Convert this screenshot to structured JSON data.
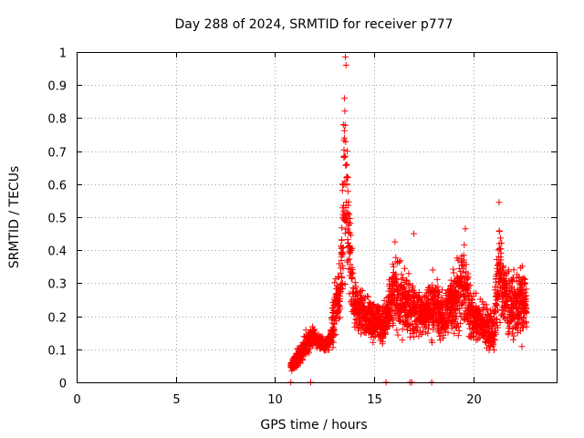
{
  "chart_data": {
    "type": "scatter",
    "title": "Day 288 of 2024, SRMTID for receiver p777",
    "xlabel": "GPS time / hours",
    "ylabel": "SRMTID / TECUs",
    "xlim": [
      0,
      24.2
    ],
    "ylim": [
      0,
      1
    ],
    "x_ticks": [
      0,
      5,
      10,
      15,
      20
    ],
    "x_tick_labels": [
      "0",
      "5",
      "10",
      "15",
      "20"
    ],
    "y_ticks": [
      0,
      0.1,
      0.2,
      0.3,
      0.4,
      0.5,
      0.6,
      0.7,
      0.8,
      0.9,
      1
    ],
    "y_tick_labels": [
      "0",
      "0.1",
      "0.2",
      "0.3",
      "0.4",
      "0.5",
      "0.6",
      "0.7",
      "0.8",
      "0.9",
      "1"
    ],
    "grid": true,
    "marker": "+",
    "color": "#ff0000",
    "series": [
      {
        "name": "SRMTID",
        "envelope": [
          {
            "x": 10.8,
            "y_min": 0.03,
            "y_max": 0.07
          },
          {
            "x": 11.0,
            "y_min": 0.03,
            "y_max": 0.1
          },
          {
            "x": 11.3,
            "y_min": 0.05,
            "y_max": 0.12
          },
          {
            "x": 11.6,
            "y_min": 0.07,
            "y_max": 0.17
          },
          {
            "x": 11.9,
            "y_min": 0.1,
            "y_max": 0.18
          },
          {
            "x": 12.2,
            "y_min": 0.09,
            "y_max": 0.16
          },
          {
            "x": 12.5,
            "y_min": 0.08,
            "y_max": 0.14
          },
          {
            "x": 12.8,
            "y_min": 0.09,
            "y_max": 0.17
          },
          {
            "x": 13.0,
            "y_min": 0.1,
            "y_max": 0.33
          },
          {
            "x": 13.3,
            "y_min": 0.15,
            "y_max": 0.45
          },
          {
            "x": 13.5,
            "y_min": 0.2,
            "y_max": 0.98
          },
          {
            "x": 13.7,
            "y_min": 0.25,
            "y_max": 0.66
          },
          {
            "x": 14.0,
            "y_min": 0.14,
            "y_max": 0.32
          },
          {
            "x": 14.5,
            "y_min": 0.12,
            "y_max": 0.3
          },
          {
            "x": 15.0,
            "y_min": 0.1,
            "y_max": 0.28
          },
          {
            "x": 15.5,
            "y_min": 0.09,
            "y_max": 0.26
          },
          {
            "x": 16.0,
            "y_min": 0.12,
            "y_max": 0.42
          },
          {
            "x": 16.5,
            "y_min": 0.1,
            "y_max": 0.38
          },
          {
            "x": 17.0,
            "y_min": 0.12,
            "y_max": 0.33
          },
          {
            "x": 17.5,
            "y_min": 0.11,
            "y_max": 0.3
          },
          {
            "x": 18.0,
            "y_min": 0.1,
            "y_max": 0.38
          },
          {
            "x": 18.5,
            "y_min": 0.1,
            "y_max": 0.28
          },
          {
            "x": 19.0,
            "y_min": 0.11,
            "y_max": 0.4
          },
          {
            "x": 19.5,
            "y_min": 0.12,
            "y_max": 0.46
          },
          {
            "x": 20.0,
            "y_min": 0.1,
            "y_max": 0.28
          },
          {
            "x": 20.5,
            "y_min": 0.09,
            "y_max": 0.27
          },
          {
            "x": 21.0,
            "y_min": 0.05,
            "y_max": 0.25
          },
          {
            "x": 21.3,
            "y_min": 0.15,
            "y_max": 0.54
          },
          {
            "x": 21.6,
            "y_min": 0.12,
            "y_max": 0.4
          },
          {
            "x": 22.0,
            "y_min": 0.1,
            "y_max": 0.35
          },
          {
            "x": 22.5,
            "y_min": 0.1,
            "y_max": 0.39
          },
          {
            "x": 22.7,
            "y_min": 0.12,
            "y_max": 0.35
          }
        ],
        "peaks": [
          {
            "x": 13.55,
            "y": 0.985
          },
          {
            "x": 13.58,
            "y": 0.96
          },
          {
            "x": 13.5,
            "y": 0.86
          },
          {
            "x": 13.45,
            "y": 0.78
          },
          {
            "x": 13.62,
            "y": 0.66
          },
          {
            "x": 13.68,
            "y": 0.62
          },
          {
            "x": 13.4,
            "y": 0.6
          },
          {
            "x": 21.3,
            "y": 0.545
          },
          {
            "x": 19.6,
            "y": 0.465
          },
          {
            "x": 16.05,
            "y": 0.425
          },
          {
            "x": 17.0,
            "y": 0.45
          }
        ],
        "zero_marks_x": [
          10.8,
          11.8,
          15.6,
          16.8,
          16.9,
          17.9
        ]
      }
    ]
  }
}
